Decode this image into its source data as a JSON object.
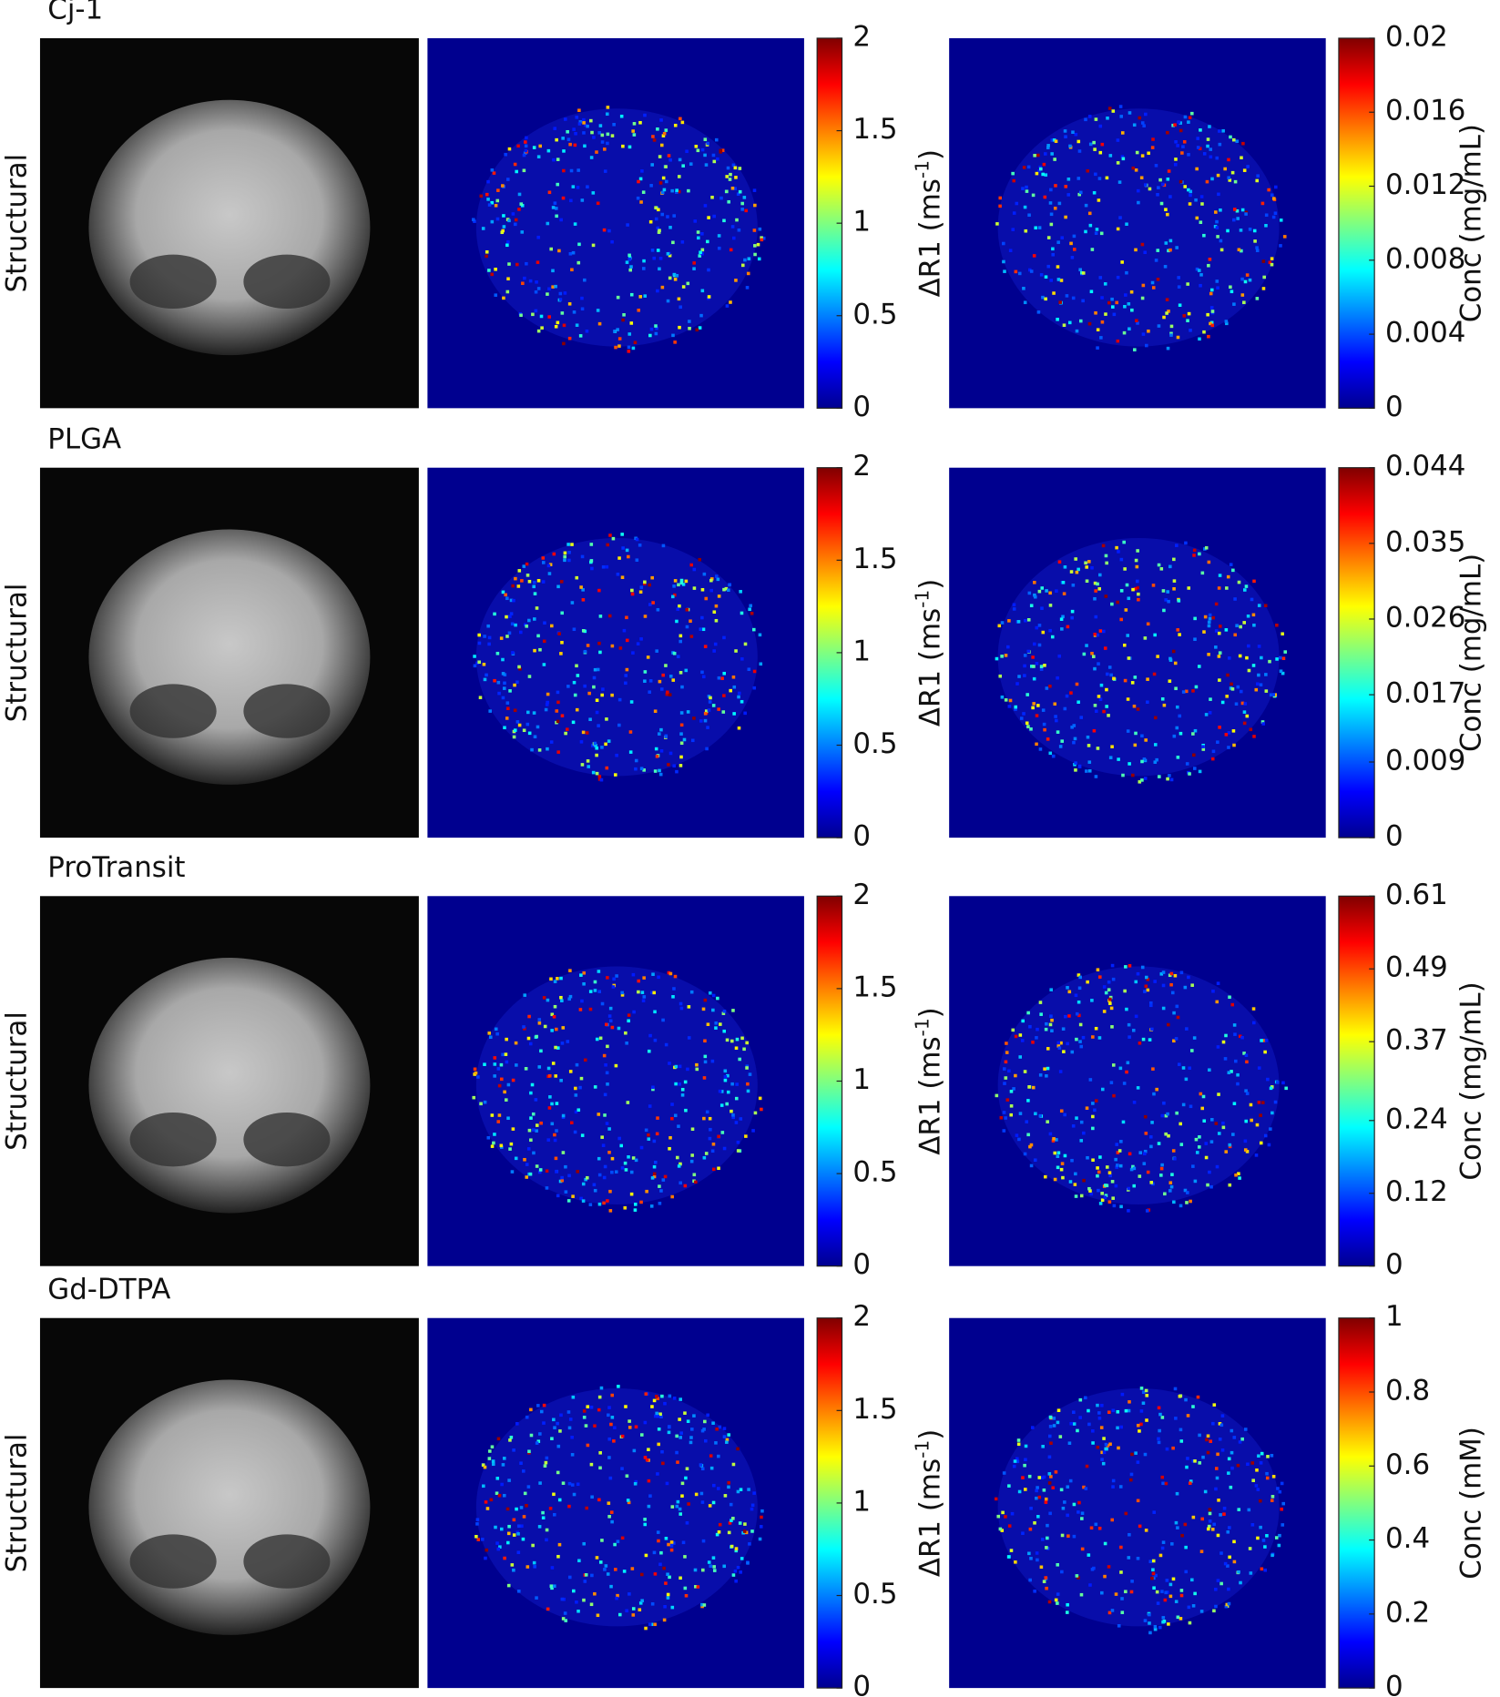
{
  "panels": [
    {
      "title": "Cj-1",
      "row_label": "Structural",
      "colorbars": [
        {
          "label": {
            "text": "ΔR1 (ms",
            "sup": "-1",
            "close": ")"
          },
          "lim": [
            0,
            2
          ],
          "ticks": [
            0,
            0.5,
            1,
            1.5,
            2
          ]
        },
        {
          "label": {
            "text": "Conc (mg/mL)"
          },
          "lim": [
            0,
            0.02
          ],
          "ticks": [
            0,
            0.004,
            0.008,
            0.012,
            0.016,
            0.02
          ]
        }
      ]
    },
    {
      "title": "PLGA",
      "row_label": "Structural",
      "colorbars": [
        {
          "label": {
            "text": "ΔR1 (ms",
            "sup": "-1",
            "close": ")"
          },
          "lim": [
            0,
            2
          ],
          "ticks": [
            0,
            0.5,
            1,
            1.5,
            2
          ]
        },
        {
          "label": {
            "text": "Conc (mg/mL)"
          },
          "lim": [
            0,
            0.044
          ],
          "ticks": [
            0,
            0.009,
            0.017,
            0.026,
            0.035,
            0.044
          ]
        }
      ]
    },
    {
      "title": "ProTransit",
      "row_label": "Structural",
      "colorbars": [
        {
          "label": {
            "text": "ΔR1 (ms",
            "sup": "-1",
            "close": ")"
          },
          "lim": [
            0,
            2
          ],
          "ticks": [
            0,
            0.5,
            1,
            1.5,
            2
          ]
        },
        {
          "label": {
            "text": "Conc (mg/mL)"
          },
          "lim": [
            0,
            0.61
          ],
          "ticks": [
            0,
            0.12,
            0.24,
            0.37,
            0.49,
            0.61
          ]
        }
      ]
    },
    {
      "title": "Gd-DTPA",
      "row_label": "Structural",
      "colorbars": [
        {
          "label": {
            "text": "ΔR1 (ms",
            "sup": "-1",
            "close": ")"
          },
          "lim": [
            0,
            2
          ],
          "ticks": [
            0,
            0.5,
            1,
            1.5,
            2
          ]
        },
        {
          "label": {
            "text": "Conc (mM)"
          },
          "lim": [
            0,
            1
          ],
          "ticks": [
            0,
            0.2,
            0.4,
            0.6,
            0.8,
            1
          ]
        }
      ]
    }
  ]
}
